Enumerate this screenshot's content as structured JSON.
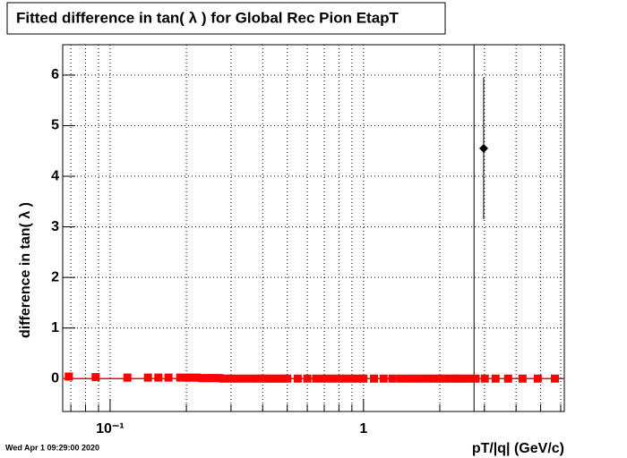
{
  "chart_data": {
    "type": "scatter",
    "title": "Fitted difference in tan( λ ) for Global Rec Pion EtapT",
    "x_label": "pT/|q| (GeV/c)",
    "y_label": "difference in tan( λ )",
    "footer": "Wed Apr  1 09:29:00 2020",
    "xlog": true,
    "grid": true,
    "xlim": [
      0.065,
      6.2
    ],
    "ylim": [
      -0.65,
      6.6
    ],
    "xticks": [
      {
        "value": 0.1,
        "label": "10⁻¹"
      },
      1
    ],
    "xgrid_minor": [
      0.07,
      0.08,
      0.09,
      0.2,
      0.3,
      0.4,
      0.5,
      0.6,
      0.7,
      0.8,
      0.9,
      2,
      3,
      4,
      5,
      6
    ],
    "yticks": [
      0,
      1,
      2,
      3,
      4,
      5,
      6
    ],
    "vline": 2.73,
    "fit_line": 0,
    "series": [
      {
        "name": "red",
        "color": "#ff0000",
        "x": [
          0.0687,
          0.0877,
          0.117,
          0.141,
          0.155,
          0.17,
          0.189,
          0.2,
          0.21,
          0.22,
          0.23,
          0.24,
          0.25,
          0.26,
          0.27,
          0.28,
          0.3,
          0.32,
          0.34,
          0.36,
          0.38,
          0.4,
          0.42,
          0.44,
          0.46,
          0.48,
          0.5,
          0.55,
          0.6,
          0.65,
          0.7,
          0.75,
          0.8,
          0.85,
          0.9,
          0.95,
          1.0,
          1.1,
          1.2,
          1.3,
          1.4,
          1.5,
          1.6,
          1.7,
          1.8,
          1.9,
          2.0,
          2.1,
          2.2,
          2.3,
          2.4,
          2.5,
          2.6,
          2.77,
          3.01,
          3.32,
          3.72,
          4.24,
          4.87,
          5.69
        ],
        "values": [
          0.04,
          0.03,
          0.02,
          0.02,
          0.02,
          0.02,
          0.02,
          0.02,
          0.02,
          0.02,
          0.01,
          0.01,
          0.01,
          0.01,
          0.01,
          0,
          0,
          0,
          0,
          0,
          0,
          0,
          0,
          0,
          0,
          0,
          0,
          0,
          0,
          0,
          0,
          0,
          0,
          0,
          0,
          0,
          0,
          0,
          0,
          0,
          0,
          0,
          0,
          0,
          0,
          0,
          0,
          0,
          0,
          0,
          0,
          0,
          0,
          0,
          0,
          0,
          0,
          0,
          0,
          0
        ]
      },
      {
        "name": "black",
        "color": "#000000",
        "x": [
          2.98
        ],
        "values": [
          4.55
        ],
        "errors": [
          1.4
        ]
      }
    ]
  }
}
